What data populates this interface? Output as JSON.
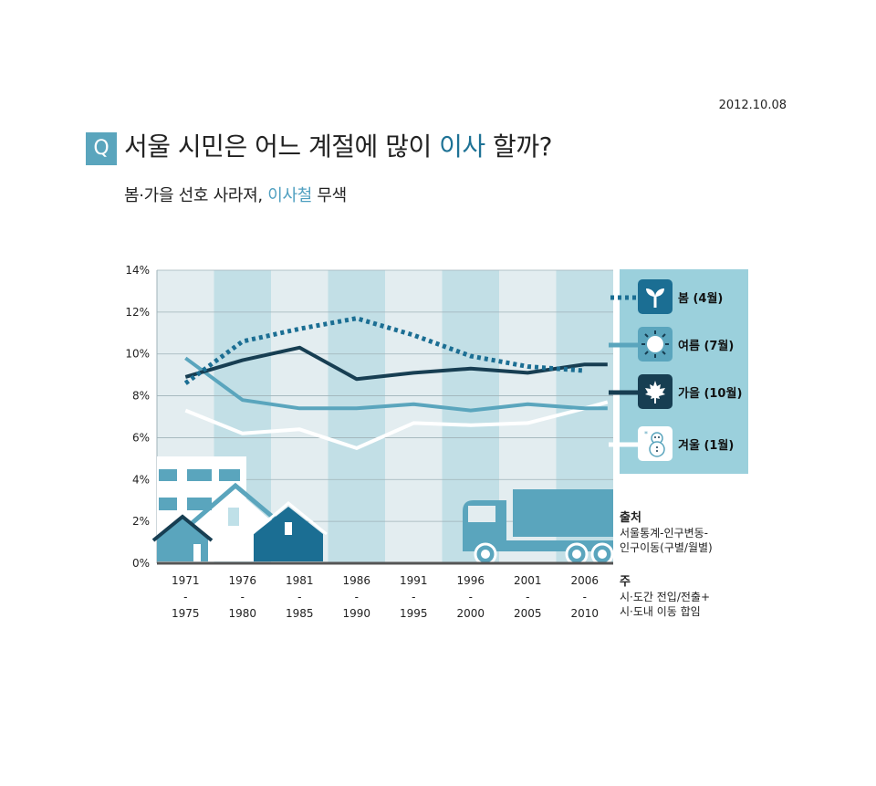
{
  "date": "2012.10.08",
  "q_mark": "Q",
  "title": {
    "part1": "서울 시민은 어느 계절에 많이 ",
    "highlight": "이사",
    "part2": " 할까?"
  },
  "subtitle": {
    "part1": "봄·가을 선호 사라져, ",
    "highlight": "이사철",
    "part2": " 무색"
  },
  "legend": [
    {
      "label": "봄 (4월)",
      "icon": "sprout-icon"
    },
    {
      "label": "여름 (7월)",
      "icon": "sun-icon"
    },
    {
      "label": "가을 (10월)",
      "icon": "maple-leaf-icon"
    },
    {
      "label": "겨울 (1월)",
      "icon": "snowman-icon"
    }
  ],
  "source": {
    "heading": "출처",
    "line1": "서울통계-인구변동-",
    "line2": "인구이동(구별/월별)"
  },
  "note": {
    "heading": "주",
    "line1": "시·도간 전입/전출+",
    "line2": "시·도내 이동 합임"
  },
  "colors": {
    "spring": "#1b6e93",
    "summer": "#5aa5bd",
    "autumn": "#173e52",
    "winter": "#ffffff",
    "band_light": "#e3edf0",
    "band_dark": "#c2dfe6",
    "legend_bg": "#9bd0dc"
  },
  "chart_data": {
    "type": "line",
    "categories": [
      [
        "1971",
        "-",
        "1975"
      ],
      [
        "1976",
        "-",
        "1980"
      ],
      [
        "1981",
        "-",
        "1985"
      ],
      [
        "1986",
        "-",
        "1990"
      ],
      [
        "1991",
        "-",
        "1995"
      ],
      [
        "1996",
        "-",
        "2000"
      ],
      [
        "2001",
        "-",
        "2005"
      ],
      [
        "2006",
        "-",
        "2010"
      ]
    ],
    "x": [
      1973,
      1978,
      1983,
      1988,
      1993,
      1998,
      2003,
      2008
    ],
    "xlim": [
      1970.5,
      2010.5
    ],
    "ylim": [
      0,
      14
    ],
    "yticks": [
      0,
      2,
      4,
      6,
      8,
      10,
      12,
      14
    ],
    "ytick_labels": [
      "0%",
      "2%",
      "4%",
      "6%",
      "8%",
      "10%",
      "12%",
      "14%"
    ],
    "series": [
      {
        "name": "봄 (4월)",
        "style": "dotted",
        "x": [
          1973,
          1978,
          1983,
          1988,
          1993,
          1998,
          2003,
          2008
        ],
        "values": [
          8.6,
          10.6,
          11.2,
          11.7,
          10.9,
          9.9,
          9.4,
          9.2
        ]
      },
      {
        "name": "여름 (7월)",
        "style": "solid",
        "x": [
          1973,
          1978,
          1983,
          1988,
          1993,
          1998,
          2003,
          2008,
          2010
        ],
        "values": [
          9.8,
          7.8,
          7.4,
          7.4,
          7.6,
          7.3,
          7.6,
          7.4,
          7.4
        ]
      },
      {
        "name": "가을 (10월)",
        "style": "solid",
        "x": [
          1973,
          1978,
          1983,
          1988,
          1993,
          1998,
          2003,
          2008,
          2010
        ],
        "values": [
          8.9,
          9.7,
          10.3,
          8.8,
          9.1,
          9.3,
          9.1,
          9.5,
          9.5
        ]
      },
      {
        "name": "겨울 (1월)",
        "style": "solid",
        "x": [
          1973,
          1978,
          1983,
          1988,
          1993,
          1998,
          2003,
          2008,
          2010
        ],
        "values": [
          7.3,
          6.2,
          6.4,
          5.5,
          6.7,
          6.6,
          6.7,
          7.4,
          7.7
        ]
      }
    ],
    "grid": true,
    "legend_position": "right"
  }
}
